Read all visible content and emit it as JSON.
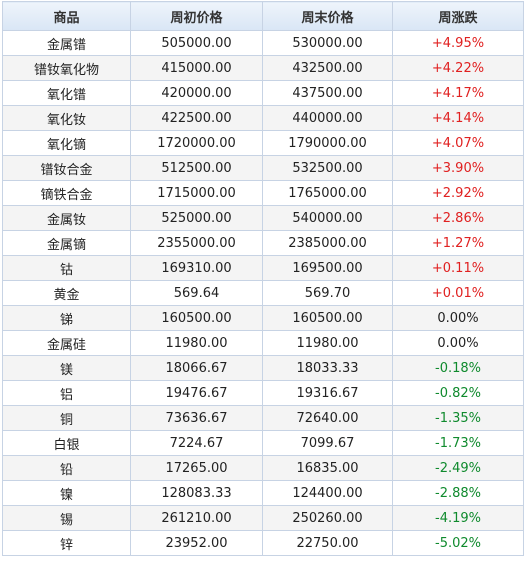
{
  "header": {
    "commodity": "商品",
    "week_open": "周初价格",
    "week_close": "周末价格",
    "change": "周涨跌"
  },
  "colors": {
    "up": "#e02020",
    "down": "#0f8a2d",
    "flat": "#222222"
  },
  "rows": [
    {
      "name": "金属镨",
      "open": "505000.00",
      "close": "530000.00",
      "change": "+4.95%",
      "trend": "up"
    },
    {
      "name": "镨钕氧化物",
      "open": "415000.00",
      "close": "432500.00",
      "change": "+4.22%",
      "trend": "up"
    },
    {
      "name": "氧化镨",
      "open": "420000.00",
      "close": "437500.00",
      "change": "+4.17%",
      "trend": "up"
    },
    {
      "name": "氧化钕",
      "open": "422500.00",
      "close": "440000.00",
      "change": "+4.14%",
      "trend": "up"
    },
    {
      "name": "氧化镝",
      "open": "1720000.00",
      "close": "1790000.00",
      "change": "+4.07%",
      "trend": "up"
    },
    {
      "name": "镨钕合金",
      "open": "512500.00",
      "close": "532500.00",
      "change": "+3.90%",
      "trend": "up"
    },
    {
      "name": "镝铁合金",
      "open": "1715000.00",
      "close": "1765000.00",
      "change": "+2.92%",
      "trend": "up"
    },
    {
      "name": "金属钕",
      "open": "525000.00",
      "close": "540000.00",
      "change": "+2.86%",
      "trend": "up"
    },
    {
      "name": "金属镝",
      "open": "2355000.00",
      "close": "2385000.00",
      "change": "+1.27%",
      "trend": "up"
    },
    {
      "name": "钴",
      "open": "169310.00",
      "close": "169500.00",
      "change": "+0.11%",
      "trend": "up"
    },
    {
      "name": "黄金",
      "open": "569.64",
      "close": "569.70",
      "change": "+0.01%",
      "trend": "up"
    },
    {
      "name": "锑",
      "open": "160500.00",
      "close": "160500.00",
      "change": "0.00%",
      "trend": "flat"
    },
    {
      "name": "金属硅",
      "open": "11980.00",
      "close": "11980.00",
      "change": "0.00%",
      "trend": "flat"
    },
    {
      "name": "镁",
      "open": "18066.67",
      "close": "18033.33",
      "change": "-0.18%",
      "trend": "down"
    },
    {
      "name": "铝",
      "open": "19476.67",
      "close": "19316.67",
      "change": "-0.82%",
      "trend": "down"
    },
    {
      "name": "铜",
      "open": "73636.67",
      "close": "72640.00",
      "change": "-1.35%",
      "trend": "down"
    },
    {
      "name": "白银",
      "open": "7224.67",
      "close": "7099.67",
      "change": "-1.73%",
      "trend": "down"
    },
    {
      "name": "铅",
      "open": "17265.00",
      "close": "16835.00",
      "change": "-2.49%",
      "trend": "down"
    },
    {
      "name": "镍",
      "open": "128083.33",
      "close": "124400.00",
      "change": "-2.88%",
      "trend": "down"
    },
    {
      "name": "锡",
      "open": "261210.00",
      "close": "250260.00",
      "change": "-4.19%",
      "trend": "down"
    },
    {
      "name": "锌",
      "open": "23952.00",
      "close": "22750.00",
      "change": "-5.02%",
      "trend": "down"
    }
  ]
}
